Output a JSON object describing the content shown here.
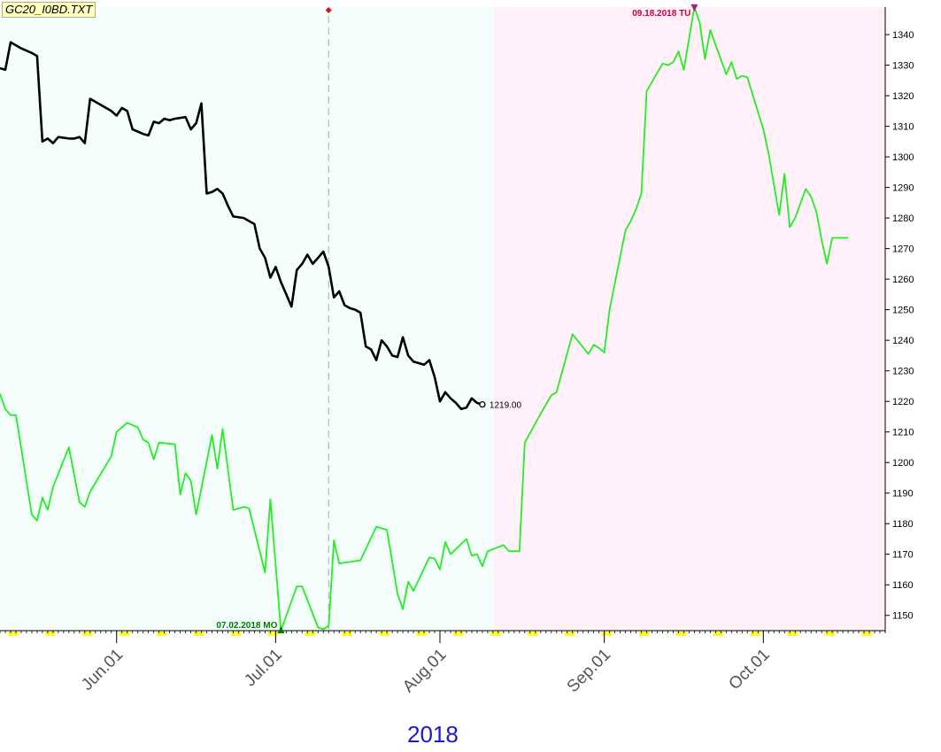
{
  "file_label": "GC20_I0BD.TXT",
  "year_label": "2018",
  "colors": {
    "past_background": "#f4fffd",
    "future_background": "#fff0fa",
    "price_line": "#000000",
    "projection_line": "#22ee22",
    "high_marker": "#cc0033",
    "low_marker": "#007a00",
    "axis_marker_yellow": "#ffff00"
  },
  "chart_data": {
    "type": "line",
    "title": "",
    "ylabel": "",
    "xlabel": "2018",
    "x_range": [
      "2018-05-10",
      "2018-10-24"
    ],
    "ylim": [
      1145,
      1349
    ],
    "y_ticks": [
      1150,
      1160,
      1170,
      1180,
      1190,
      1200,
      1210,
      1220,
      1230,
      1240,
      1250,
      1260,
      1270,
      1280,
      1290,
      1300,
      1310,
      1320,
      1330,
      1340
    ],
    "x_tick_labels": [
      {
        "label": "Jun.01",
        "date": "2018-06-01"
      },
      {
        "label": "Jul.01",
        "date": "2018-07-01"
      },
      {
        "label": "Aug.01",
        "date": "2018-08-01"
      },
      {
        "label": "Sep.01",
        "date": "2018-09-01"
      },
      {
        "label": "Oct.01",
        "date": "2018-10-01"
      }
    ],
    "boundary_date": "2018-08-11",
    "cursor_date": "2018-07-11",
    "last_value_label": "1219.00",
    "high_annotation": {
      "text": "09.18.2018 TU",
      "date": "2018-09-18",
      "value": 1349
    },
    "low_annotation": {
      "text": "07.02.2018 MO",
      "date": "2018-07-02",
      "value": 1145
    },
    "series": [
      {
        "role": "price",
        "points": [
          [
            "2018-05-10",
            1329
          ],
          [
            "2018-05-11",
            1328.5
          ],
          [
            "2018-05-12",
            1337.5
          ],
          [
            "2018-05-14",
            1335.5
          ],
          [
            "2018-05-16",
            1334
          ],
          [
            "2018-05-17",
            1333
          ],
          [
            "2018-05-18",
            1305
          ],
          [
            "2018-05-19",
            1306
          ],
          [
            "2018-05-20",
            1304.5
          ],
          [
            "2018-05-21",
            1306.5
          ],
          [
            "2018-05-23",
            1306
          ],
          [
            "2018-05-24",
            1306
          ],
          [
            "2018-05-25",
            1306.5
          ],
          [
            "2018-05-26",
            1304.5
          ],
          [
            "2018-05-27",
            1319
          ],
          [
            "2018-05-29",
            1317
          ],
          [
            "2018-05-31",
            1315
          ],
          [
            "2018-06-01",
            1313.5
          ],
          [
            "2018-06-02",
            1316
          ],
          [
            "2018-06-03",
            1315
          ],
          [
            "2018-06-04",
            1309
          ],
          [
            "2018-06-06",
            1307.5
          ],
          [
            "2018-06-07",
            1307
          ],
          [
            "2018-06-08",
            1311.5
          ],
          [
            "2018-06-09",
            1311
          ],
          [
            "2018-06-10",
            1312.5
          ],
          [
            "2018-06-11",
            1312
          ],
          [
            "2018-06-12",
            1312.5
          ],
          [
            "2018-06-14",
            1313
          ],
          [
            "2018-06-15",
            1309
          ],
          [
            "2018-06-16",
            1311
          ],
          [
            "2018-06-17",
            1317.5
          ],
          [
            "2018-06-18",
            1288
          ],
          [
            "2018-06-19",
            1288.5
          ],
          [
            "2018-06-20",
            1289.5
          ],
          [
            "2018-06-21",
            1288
          ],
          [
            "2018-06-22",
            1284
          ],
          [
            "2018-06-23",
            1280.5
          ],
          [
            "2018-06-25",
            1280
          ],
          [
            "2018-06-26",
            1279
          ],
          [
            "2018-06-27",
            1278
          ],
          [
            "2018-06-28",
            1270
          ],
          [
            "2018-06-29",
            1267
          ],
          [
            "2018-06-30",
            1260.5
          ],
          [
            "2018-07-01",
            1264
          ],
          [
            "2018-07-02",
            1259
          ],
          [
            "2018-07-03",
            1255
          ],
          [
            "2018-07-04",
            1251
          ],
          [
            "2018-07-05",
            1263
          ],
          [
            "2018-07-06",
            1265
          ],
          [
            "2018-07-07",
            1268
          ],
          [
            "2018-07-08",
            1265
          ],
          [
            "2018-07-09",
            1267
          ],
          [
            "2018-07-10",
            1269
          ],
          [
            "2018-07-11",
            1264
          ],
          [
            "2018-07-12",
            1254
          ],
          [
            "2018-07-13",
            1256
          ],
          [
            "2018-07-14",
            1251.5
          ],
          [
            "2018-07-15",
            1250.5
          ],
          [
            "2018-07-16",
            1250
          ],
          [
            "2018-07-17",
            1249
          ],
          [
            "2018-07-18",
            1238
          ],
          [
            "2018-07-19",
            1237
          ],
          [
            "2018-07-20",
            1233.5
          ],
          [
            "2018-07-21",
            1240
          ],
          [
            "2018-07-22",
            1238
          ],
          [
            "2018-07-23",
            1235
          ],
          [
            "2018-07-24",
            1234.5
          ],
          [
            "2018-07-25",
            1241
          ],
          [
            "2018-07-26",
            1235
          ],
          [
            "2018-07-27",
            1233
          ],
          [
            "2018-07-28",
            1232.5
          ],
          [
            "2018-07-29",
            1232
          ],
          [
            "2018-07-30",
            1233.5
          ],
          [
            "2018-07-31",
            1228
          ],
          [
            "2018-08-01",
            1220
          ],
          [
            "2018-08-02",
            1223
          ],
          [
            "2018-08-03",
            1221
          ],
          [
            "2018-08-04",
            1219.5
          ],
          [
            "2018-08-05",
            1217.5
          ],
          [
            "2018-08-06",
            1218
          ],
          [
            "2018-08-07",
            1221
          ],
          [
            "2018-08-08",
            1219.5
          ],
          [
            "2018-08-09",
            1219
          ]
        ]
      },
      {
        "role": "projection",
        "points": [
          [
            "2018-05-10",
            1222.5
          ],
          [
            "2018-05-11",
            1217.5
          ],
          [
            "2018-05-12",
            1215.5
          ],
          [
            "2018-05-13",
            1215.5
          ],
          [
            "2018-05-16",
            1183
          ],
          [
            "2018-05-17",
            1181
          ],
          [
            "2018-05-18",
            1188.5
          ],
          [
            "2018-05-19",
            1184.5
          ],
          [
            "2018-05-20",
            1192
          ],
          [
            "2018-05-23",
            1205
          ],
          [
            "2018-05-25",
            1187
          ],
          [
            "2018-05-26",
            1185.5
          ],
          [
            "2018-05-27",
            1190.5
          ],
          [
            "2018-05-31",
            1202
          ],
          [
            "2018-06-01",
            1210
          ],
          [
            "2018-06-03",
            1213
          ],
          [
            "2018-06-05",
            1211.5
          ],
          [
            "2018-06-06",
            1207.5
          ],
          [
            "2018-06-07",
            1206.5
          ],
          [
            "2018-06-08",
            1201
          ],
          [
            "2018-06-09",
            1206.5
          ],
          [
            "2018-06-12",
            1206
          ],
          [
            "2018-06-13",
            1189.5
          ],
          [
            "2018-06-14",
            1196.5
          ],
          [
            "2018-06-15",
            1194
          ],
          [
            "2018-06-16",
            1183
          ],
          [
            "2018-06-19",
            1209
          ],
          [
            "2018-06-20",
            1198
          ],
          [
            "2018-06-21",
            1211
          ],
          [
            "2018-06-23",
            1184.5
          ],
          [
            "2018-06-25",
            1185.5
          ],
          [
            "2018-06-26",
            1185
          ],
          [
            "2018-06-29",
            1164
          ],
          [
            "2018-06-30",
            1188
          ],
          [
            "2018-07-02",
            1145
          ],
          [
            "2018-07-05",
            1159.5
          ],
          [
            "2018-07-06",
            1159.5
          ],
          [
            "2018-07-09",
            1146
          ],
          [
            "2018-07-10",
            1145.5
          ],
          [
            "2018-07-11",
            1146.5
          ],
          [
            "2018-07-12",
            1174.5
          ],
          [
            "2018-07-13",
            1167
          ],
          [
            "2018-07-17",
            1168
          ],
          [
            "2018-07-20",
            1179
          ],
          [
            "2018-07-22",
            1178
          ],
          [
            "2018-07-24",
            1157
          ],
          [
            "2018-07-25",
            1152
          ],
          [
            "2018-07-26",
            1161
          ],
          [
            "2018-07-27",
            1158
          ],
          [
            "2018-07-30",
            1169
          ],
          [
            "2018-07-31",
            1168.5
          ],
          [
            "2018-08-01",
            1165
          ],
          [
            "2018-08-02",
            1174
          ],
          [
            "2018-08-03",
            1170
          ],
          [
            "2018-08-06",
            1175
          ],
          [
            "2018-08-07",
            1169.5
          ],
          [
            "2018-08-08",
            1170
          ],
          [
            "2018-08-09",
            1166
          ],
          [
            "2018-08-10",
            1171
          ],
          [
            "2018-08-13",
            1173
          ],
          [
            "2018-08-14",
            1171
          ],
          [
            "2018-08-16",
            1171
          ],
          [
            "2018-08-17",
            1206.5
          ],
          [
            "2018-08-20",
            1216
          ],
          [
            "2018-08-22",
            1222
          ],
          [
            "2018-08-23",
            1223
          ],
          [
            "2018-08-26",
            1242
          ],
          [
            "2018-08-29",
            1235.5
          ],
          [
            "2018-08-30",
            1238.5
          ],
          [
            "2018-08-31",
            1237.5
          ],
          [
            "2018-09-01",
            1236
          ],
          [
            "2018-09-02",
            1250
          ],
          [
            "2018-09-05",
            1276
          ],
          [
            "2018-09-06",
            1279
          ],
          [
            "2018-09-07",
            1283
          ],
          [
            "2018-09-08",
            1288
          ],
          [
            "2018-09-09",
            1321.5
          ],
          [
            "2018-09-12",
            1330.5
          ],
          [
            "2018-09-13",
            1330
          ],
          [
            "2018-09-14",
            1331
          ],
          [
            "2018-09-15",
            1334.5
          ],
          [
            "2018-09-16",
            1328.5
          ],
          [
            "2018-09-18",
            1349
          ],
          [
            "2018-09-19",
            1344
          ],
          [
            "2018-09-20",
            1332
          ],
          [
            "2018-09-21",
            1341.5
          ],
          [
            "2018-09-24",
            1327
          ],
          [
            "2018-09-25",
            1331
          ],
          [
            "2018-09-26",
            1325.5
          ],
          [
            "2018-09-27",
            1326.5
          ],
          [
            "2018-09-28",
            1326
          ],
          [
            "2018-10-01",
            1309
          ],
          [
            "2018-10-02",
            1301
          ],
          [
            "2018-10-04",
            1281
          ],
          [
            "2018-10-05",
            1294.5
          ],
          [
            "2018-10-06",
            1277
          ],
          [
            "2018-10-07",
            1280
          ],
          [
            "2018-10-09",
            1289.5
          ],
          [
            "2018-10-10",
            1287
          ],
          [
            "2018-10-11",
            1282
          ],
          [
            "2018-10-12",
            1273
          ],
          [
            "2018-10-13",
            1265
          ],
          [
            "2018-10-14",
            1273.5
          ],
          [
            "2018-10-17",
            1273.5
          ]
        ]
      }
    ]
  }
}
